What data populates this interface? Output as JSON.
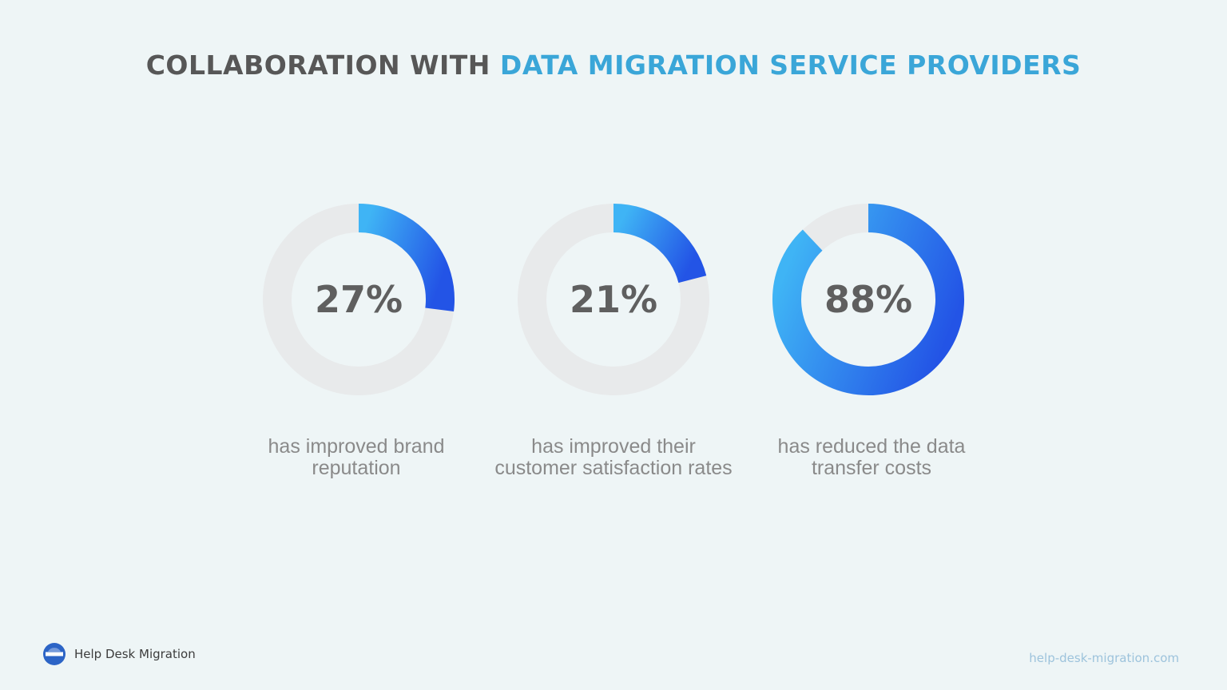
{
  "title": {
    "part1": "COLLABORATION WITH ",
    "part2": "DATA MIGRATION SERVICE PROVIDERS"
  },
  "colors": {
    "track": "#e8eaeb",
    "gradient_light": "#3fb4f5",
    "gradient_dark": "#2354e6",
    "accent_title": "#3aa6d8"
  },
  "chart_data": {
    "type": "pie",
    "items": [
      {
        "value": 27,
        "label": "27%",
        "caption": "has improved brand reputation"
      },
      {
        "value": 21,
        "label": "21%",
        "caption": "has improved their customer satisfaction rates"
      },
      {
        "value": 88,
        "label": "88%",
        "caption": "has reduced the data transfer costs"
      }
    ]
  },
  "footer": {
    "brand_name": "Help Desk Migration",
    "logo_icon": "help-desk-migration-logo-icon",
    "website": "help-desk-migration.com"
  }
}
